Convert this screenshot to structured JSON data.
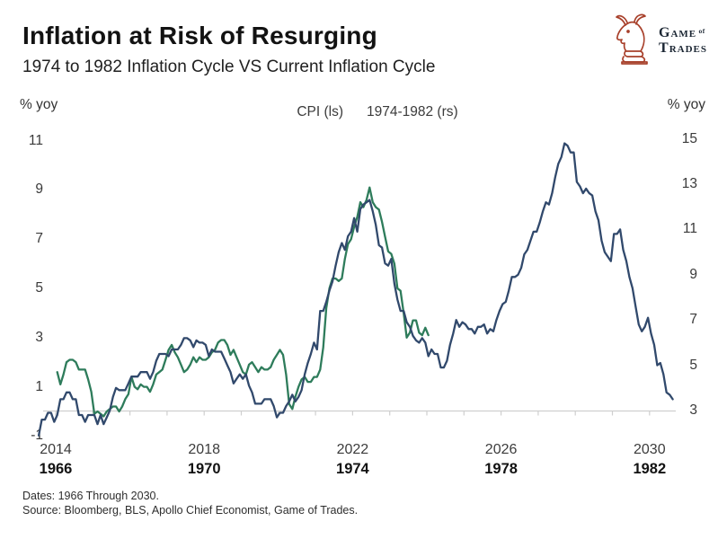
{
  "header": {
    "title": "Inflation at Risk of Resurging",
    "subtitle": "1974 to 1982 Inflation Cycle VS Current Inflation Cycle"
  },
  "logo": {
    "icon": "knight-bull-icon",
    "icon_color": "#a8402b",
    "word1": "Game",
    "word_of": "of",
    "word2": "Trades"
  },
  "legend": {
    "series1": "CPI (ls)",
    "series2": "1974-1982 (rs)"
  },
  "footer": {
    "dates": "Dates: 1966 Through 2030.",
    "source": "Source: Bloomberg, BLS, Apollo Chief Economist, Game of Trades."
  },
  "chart_data": {
    "type": "line",
    "title": "Inflation at Risk of Resurging",
    "legend_entries": [
      "CPI (ls)",
      "1974-1982 (rs)"
    ],
    "grid": "baseline-only",
    "legend_position": "top-center",
    "left_axis": {
      "label": "% yoy",
      "range": [
        -1,
        11
      ],
      "ticks": [
        11,
        9,
        7,
        5,
        3,
        1,
        -1
      ]
    },
    "right_axis": {
      "label": "% yoy",
      "range": [
        3,
        15
      ],
      "ticks": [
        15,
        13,
        11,
        9,
        7,
        5,
        3
      ]
    },
    "x_axis": {
      "labels_current": [
        "2014",
        "2018",
        "2022",
        "2026",
        "2030"
      ],
      "labels_historical": [
        "1966",
        "1970",
        "1974",
        "1978",
        "1982"
      ],
      "label_years": [
        2014,
        2018,
        2022,
        2026,
        2030
      ],
      "display_range": [
        2013.5,
        2030.8
      ],
      "year_tick_interval": 1
    },
    "series": [
      {
        "name": "CPI (ls)",
        "axis": "left",
        "color": "#2e7c5b",
        "cadence": "monthly",
        "start_x": 2014.0,
        "values": [
          1.6,
          1.1,
          1.5,
          2.0,
          2.1,
          2.1,
          2.0,
          1.7,
          1.7,
          1.7,
          1.3,
          0.8,
          -0.1,
          0.0,
          -0.1,
          -0.2,
          0.0,
          0.1,
          0.2,
          0.2,
          0.0,
          0.2,
          0.5,
          0.7,
          1.4,
          1.0,
          0.9,
          1.1,
          1.0,
          1.0,
          0.8,
          1.1,
          1.5,
          1.6,
          1.7,
          2.1,
          2.5,
          2.7,
          2.4,
          2.2,
          1.9,
          1.6,
          1.7,
          1.9,
          2.2,
          2.0,
          2.2,
          2.1,
          2.1,
          2.2,
          2.4,
          2.5,
          2.8,
          2.9,
          2.9,
          2.7,
          2.3,
          2.5,
          2.2,
          1.9,
          1.6,
          1.5,
          1.9,
          2.0,
          1.8,
          1.6,
          1.8,
          1.7,
          1.7,
          1.8,
          2.1,
          2.3,
          2.5,
          2.3,
          1.5,
          0.3,
          0.1,
          0.6,
          1.0,
          1.3,
          1.4,
          1.2,
          1.2,
          1.4,
          1.4,
          1.7,
          2.6,
          4.2,
          5.0,
          5.4,
          5.4,
          5.3,
          5.4,
          6.2,
          6.8,
          7.0,
          7.5,
          7.9,
          8.5,
          8.3,
          8.6,
          9.1,
          8.5,
          8.3,
          8.2,
          7.7,
          7.1,
          6.5,
          6.4,
          6.0,
          5.0,
          4.9,
          4.0,
          3.0,
          3.2,
          3.7,
          3.7,
          3.2,
          3.1,
          3.4,
          3.1
        ]
      },
      {
        "name": "1974-1982 (rs)",
        "axis": "right",
        "color": "#31496c",
        "cadence": "monthly",
        "historical_start_year": 1966.0,
        "display_offset_years": 47.5,
        "start_x": 2013.5,
        "values": [
          1.9,
          2.6,
          2.6,
          2.9,
          2.9,
          2.5,
          2.8,
          3.5,
          3.5,
          3.8,
          3.8,
          3.5,
          3.5,
          2.8,
          2.8,
          2.5,
          2.8,
          2.8,
          2.8,
          2.4,
          2.8,
          2.4,
          2.7,
          3.0,
          3.6,
          4.0,
          3.9,
          3.9,
          3.9,
          4.2,
          4.5,
          4.5,
          4.5,
          4.7,
          4.7,
          4.7,
          4.4,
          4.7,
          5.2,
          5.5,
          5.5,
          5.5,
          5.4,
          5.7,
          5.7,
          5.7,
          5.9,
          6.2,
          6.2,
          6.1,
          5.8,
          6.1,
          6.0,
          6.0,
          5.9,
          5.4,
          5.7,
          5.6,
          5.6,
          5.6,
          5.3,
          5.0,
          4.7,
          4.2,
          4.4,
          4.6,
          4.4,
          4.6,
          4.1,
          3.8,
          3.3,
          3.3,
          3.3,
          3.5,
          3.5,
          3.5,
          3.2,
          2.7,
          2.9,
          2.9,
          3.2,
          3.4,
          3.7,
          3.4,
          3.6,
          3.9,
          4.6,
          5.1,
          5.5,
          6.0,
          5.7,
          7.4,
          7.4,
          7.8,
          8.3,
          8.7,
          9.4,
          10.0,
          10.4,
          10.1,
          10.7,
          10.9,
          11.5,
          10.9,
          11.9,
          12.1,
          12.2,
          12.3,
          11.8,
          11.2,
          10.3,
          10.2,
          9.5,
          9.4,
          9.7,
          8.6,
          7.9,
          7.4,
          7.4,
          6.9,
          6.7,
          6.3,
          6.1,
          6.0,
          6.2,
          6.0,
          5.4,
          5.7,
          5.5,
          5.5,
          4.9,
          4.9,
          5.2,
          5.9,
          6.4,
          7.0,
          6.7,
          6.9,
          6.8,
          6.6,
          6.6,
          6.4,
          6.7,
          6.7,
          6.8,
          6.4,
          6.6,
          6.5,
          7.0,
          7.4,
          7.7,
          7.8,
          8.3,
          8.9,
          8.9,
          9.0,
          9.3,
          9.9,
          10.1,
          10.5,
          10.9,
          10.9,
          11.3,
          11.8,
          12.2,
          12.1,
          12.6,
          13.3,
          13.9,
          14.2,
          14.8,
          14.7,
          14.4,
          14.4,
          13.1,
          12.9,
          12.6,
          12.8,
          12.6,
          12.5,
          11.8,
          11.4,
          10.5,
          10.0,
          9.8,
          9.6,
          10.8,
          10.8,
          11.0,
          10.1,
          9.6,
          8.9,
          8.4,
          7.6,
          6.8,
          6.5,
          6.7,
          7.1,
          6.4,
          5.9,
          5.0,
          5.1,
          4.6,
          3.8,
          3.7,
          3.5
        ]
      }
    ]
  }
}
